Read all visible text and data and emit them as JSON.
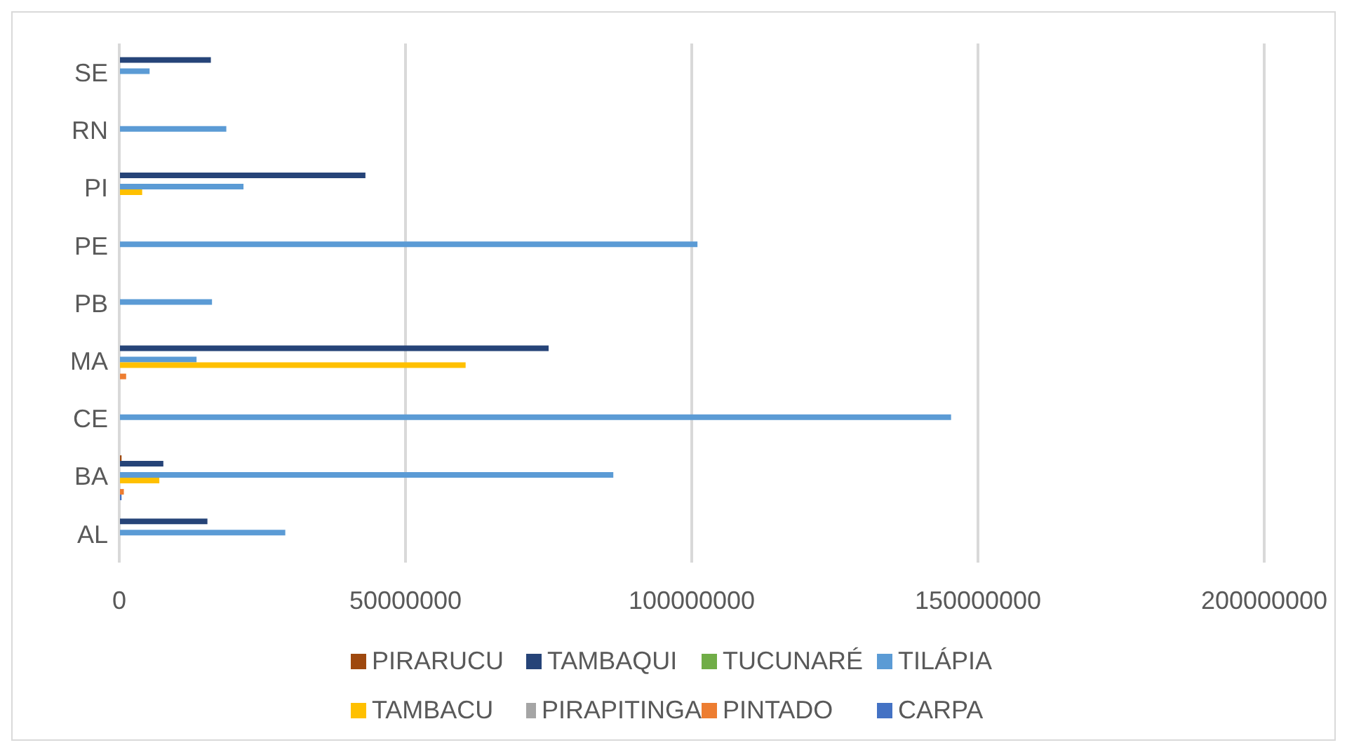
{
  "chart_data": {
    "type": "bar",
    "orientation": "horizontal",
    "categories": [
      "SE",
      "RN",
      "PI",
      "PE",
      "PB",
      "MA",
      "CE",
      "BA",
      "AL"
    ],
    "series": [
      {
        "name": "PIRARUCU",
        "color": "#9e480e",
        "values": [
          null,
          null,
          null,
          null,
          null,
          null,
          null,
          400000.0,
          null
        ]
      },
      {
        "name": "TAMBAQUI",
        "color": "#264478",
        "values": [
          16000000,
          null,
          43000000,
          null,
          null,
          75000000,
          null,
          7700000,
          15400000
        ]
      },
      {
        "name": "TUCUNARÉ",
        "color": "#70ad47",
        "values": [
          null,
          null,
          null,
          null,
          null,
          null,
          null,
          null,
          null
        ]
      },
      {
        "name": "TILÁPIA",
        "color": "#5b9bd5",
        "values": [
          5300000,
          18700000,
          21700000,
          101000000,
          16200000,
          13500000,
          145300000,
          86300000,
          29000000
        ]
      },
      {
        "name": "TAMBACU",
        "color": "#ffc000",
        "values": [
          null,
          null,
          4000000,
          null,
          null,
          60500000,
          null,
          7000000,
          null
        ]
      },
      {
        "name": "PIRAPITINGA",
        "color": "#a5a5a5",
        "values": [
          null,
          null,
          null,
          null,
          null,
          null,
          null,
          null,
          null
        ]
      },
      {
        "name": "PINTADO",
        "color": "#ed7d31",
        "values": [
          null,
          null,
          null,
          null,
          null,
          1200000,
          null,
          800000,
          null
        ]
      },
      {
        "name": "CARPA",
        "color": "#4472c4",
        "values": [
          null,
          null,
          null,
          null,
          null,
          null,
          null,
          400000,
          null
        ]
      }
    ],
    "xlim": [
      0,
      200000000
    ],
    "xticks": [
      0,
      50000000,
      100000000,
      150000000,
      200000000
    ],
    "grid": "x",
    "legend": "bottom"
  }
}
